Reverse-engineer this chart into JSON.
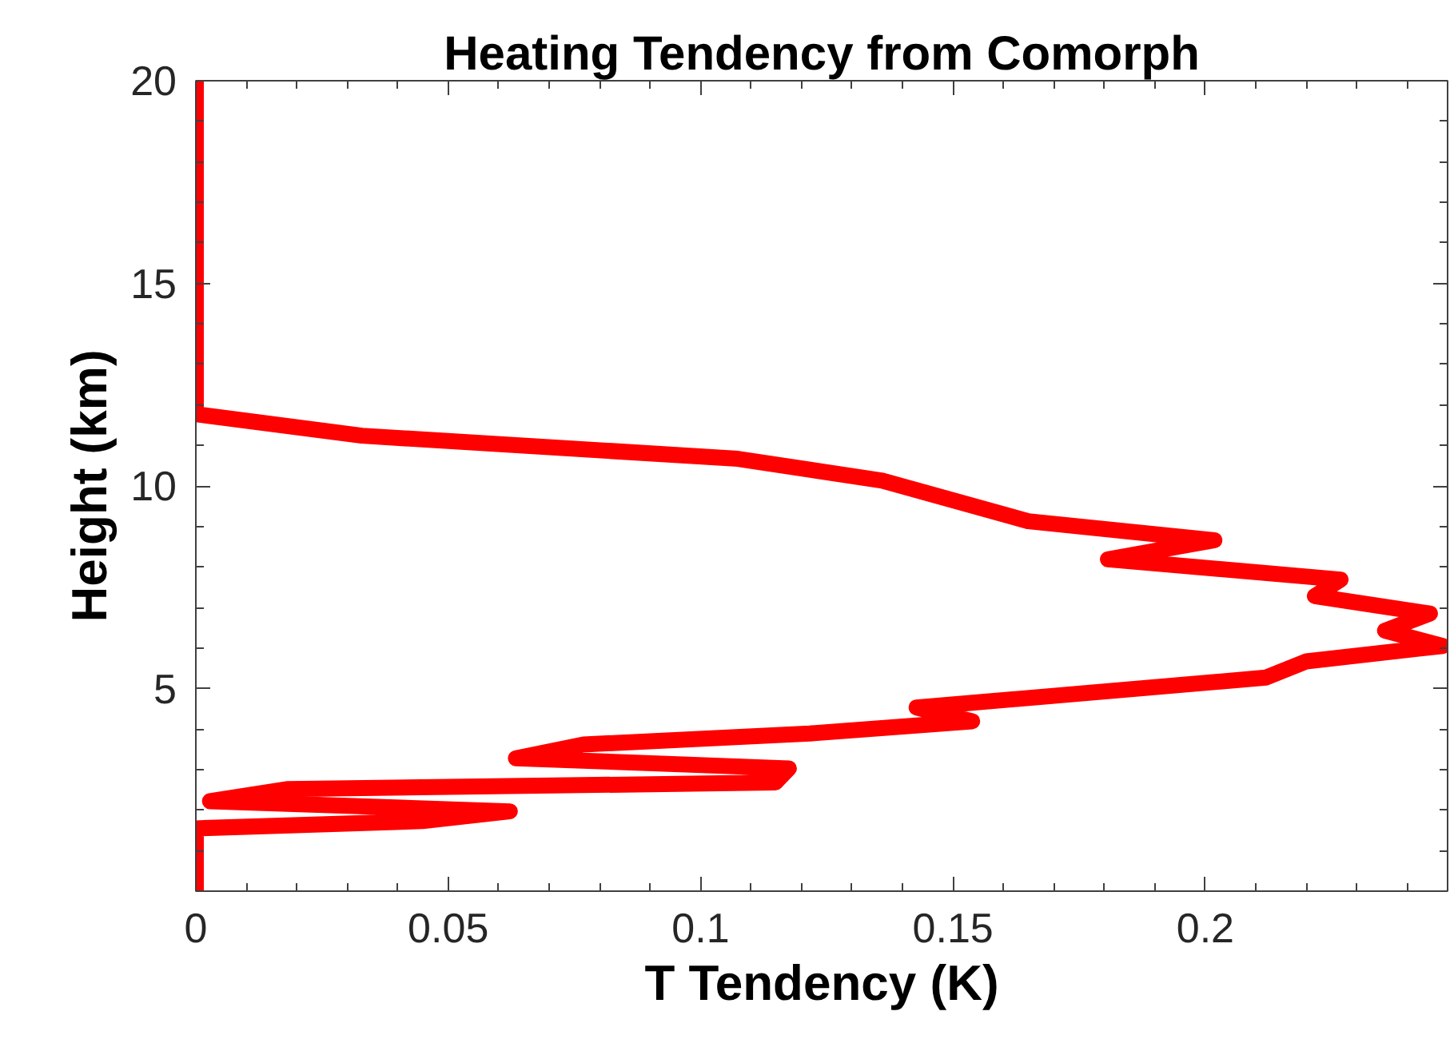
{
  "chart_data": {
    "type": "line",
    "title": "Heating Tendency from Comorph",
    "xlabel": "T Tendency (K)",
    "ylabel": "Height (km)",
    "xlim": [
      0,
      0.248
    ],
    "ylim": [
      0,
      20
    ],
    "xticks": [
      0,
      0.05,
      0.1,
      0.15,
      0.2
    ],
    "yticks": [
      5,
      10,
      15,
      20
    ],
    "grid": false,
    "marker": "none",
    "line_style": "solid",
    "series": [
      {
        "color": "#ff0000",
        "x": [
          0,
          0,
          0.0449,
          0.0622,
          0.0028,
          0.0183,
          0.1148,
          0.1175,
          0.0634,
          0.0768,
          0.1216,
          0.1538,
          0.1428,
          0.212,
          0.22,
          0.247,
          0.2356,
          0.2445,
          0.2217,
          0.2268,
          0.1807,
          0.2018,
          0.1649,
          0.136,
          0.1074,
          0.0329,
          0,
          0
        ],
        "values": [
          0,
          1.55,
          1.73,
          1.97,
          2.22,
          2.52,
          2.68,
          3.03,
          3.28,
          3.62,
          3.89,
          4.19,
          4.53,
          5.27,
          5.67,
          6.05,
          6.43,
          6.85,
          7.28,
          7.69,
          8.19,
          8.66,
          9.13,
          10.13,
          10.67,
          11.24,
          11.77,
          20
        ]
      }
    ]
  }
}
